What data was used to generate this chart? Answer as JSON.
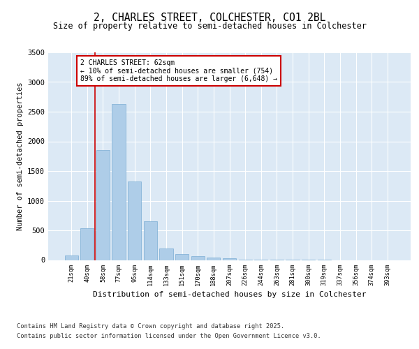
{
  "title1": "2, CHARLES STREET, COLCHESTER, CO1 2BL",
  "title2": "Size of property relative to semi-detached houses in Colchester",
  "xlabel": "Distribution of semi-detached houses by size in Colchester",
  "ylabel": "Number of semi-detached properties",
  "categories": [
    "21sqm",
    "40sqm",
    "58sqm",
    "77sqm",
    "95sqm",
    "114sqm",
    "133sqm",
    "151sqm",
    "170sqm",
    "188sqm",
    "207sqm",
    "226sqm",
    "244sqm",
    "263sqm",
    "281sqm",
    "300sqm",
    "319sqm",
    "337sqm",
    "356sqm",
    "374sqm",
    "393sqm"
  ],
  "values": [
    75,
    530,
    1850,
    2630,
    1320,
    650,
    200,
    100,
    60,
    40,
    25,
    10,
    5,
    3,
    2,
    1,
    1,
    0,
    0,
    0,
    0
  ],
  "bar_color": "#aecde8",
  "bar_edge_color": "#7aadd4",
  "vline_x": 1.5,
  "vline_color": "#cc0000",
  "annotation_text": "2 CHARLES STREET: 62sqm\n← 10% of semi-detached houses are smaller (754)\n89% of semi-detached houses are larger (6,648) →",
  "annotation_box_color": "#ffffff",
  "annotation_box_edge": "#cc0000",
  "ylim": [
    0,
    3500
  ],
  "yticks": [
    0,
    500,
    1000,
    1500,
    2000,
    2500,
    3000,
    3500
  ],
  "footer1": "Contains HM Land Registry data © Crown copyright and database right 2025.",
  "footer2": "Contains public sector information licensed under the Open Government Licence v3.0.",
  "fig_bg_color": "#ffffff",
  "plot_bg_color": "#dce9f5"
}
